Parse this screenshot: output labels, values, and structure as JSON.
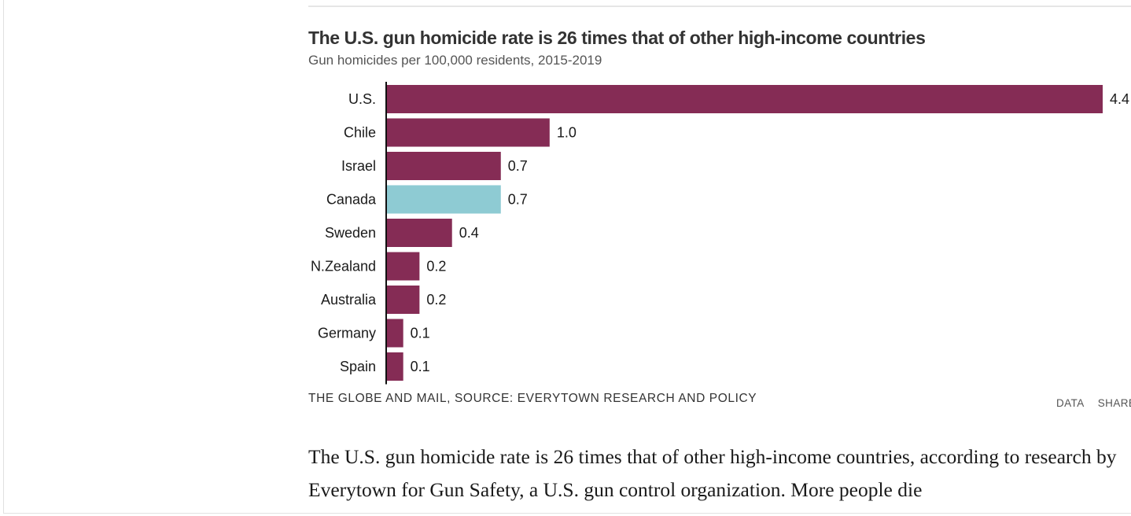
{
  "chart_header": {
    "title": "The U.S. gun homicide rate is 26 times that of other high-income countries",
    "subtitle": "Gun homicides per 100,000 residents, 2015-2019"
  },
  "chart_data": {
    "type": "bar",
    "orientation": "horizontal",
    "title": "The U.S. gun homicide rate is 26 times that of other high-income countries",
    "subtitle": "Gun homicides per 100,000 residents, 2015-2019",
    "categories": [
      "U.S.",
      "Chile",
      "Israel",
      "Canada",
      "Sweden",
      "N.Zealand",
      "Australia",
      "Germany",
      "Spain"
    ],
    "values": [
      4.4,
      1.0,
      0.7,
      0.7,
      0.4,
      0.2,
      0.2,
      0.1,
      0.1
    ],
    "value_labels": [
      "4.4",
      "1.0",
      "0.7",
      "0.7",
      "0.4",
      "0.2",
      "0.2",
      "0.1",
      "0.1"
    ],
    "highlight": "Canada",
    "xlim": [
      0,
      4.4
    ],
    "grid": false,
    "legend": "none",
    "colors": {
      "bar": "#852c55",
      "highlight": "#8ecbd3",
      "axis": "#111111"
    }
  },
  "source": "THE GLOBE AND MAIL, SOURCE: EVERYTOWN RESEARCH AND POLICY",
  "chart_links": {
    "data_label": "DATA",
    "share_label": "SHARE"
  },
  "article": {
    "paragraph": "The U.S. gun homicide rate is 26 times that of other high-income countries, according to research by Everytown for Gun Safety, a U.S. gun control organization. More people die"
  }
}
